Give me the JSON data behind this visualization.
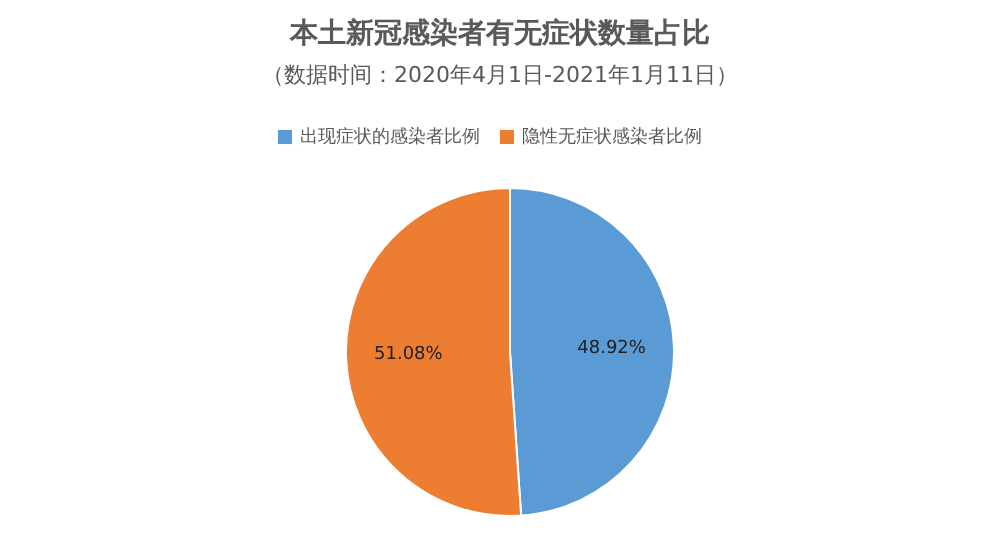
{
  "chart_data": {
    "type": "pie",
    "title": "本土新冠感染者有无症状数量占比",
    "subtitle": "（数据时间：2020年4月1日-2021年1月11日）",
    "categories": [
      "出现症状的感染者比例",
      "隐性无症状感染者比例"
    ],
    "values": [
      48.92,
      51.08
    ],
    "colors": [
      "#5b9bd5",
      "#ed7d31"
    ],
    "value_labels": [
      "48.92%",
      "51.08%"
    ],
    "legend": "top"
  }
}
